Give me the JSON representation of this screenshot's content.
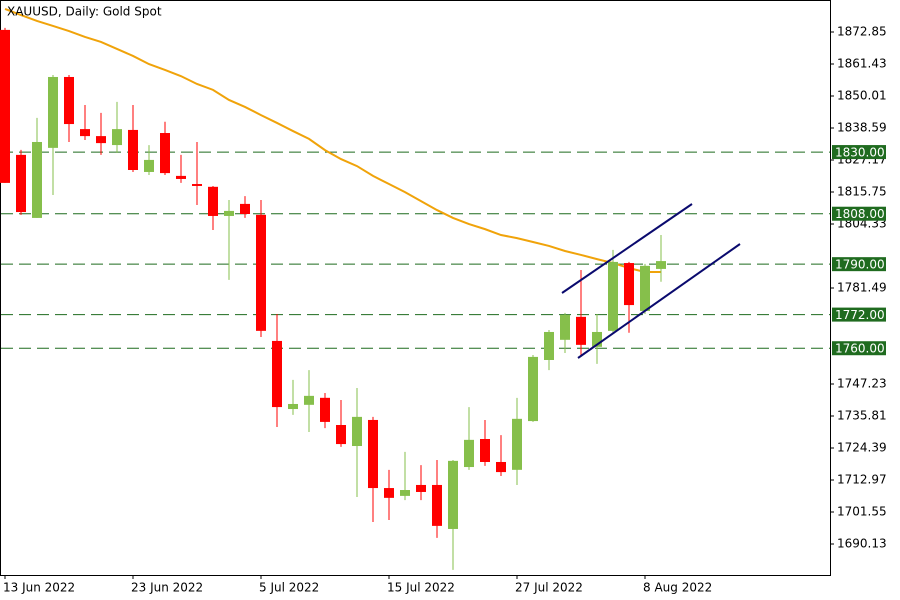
{
  "chart_data": {
    "type": "candlestick",
    "title": "XAUUSD, Daily:  Gold Spot",
    "categories": [
      "13 Jun 2022",
      null,
      null,
      null,
      null,
      null,
      null,
      null,
      "23 Jun 2022",
      null,
      null,
      null,
      null,
      null,
      null,
      null,
      "5 Jul 2022",
      null,
      null,
      null,
      null,
      null,
      null,
      null,
      "15 Jul 2022",
      null,
      null,
      null,
      null,
      null,
      null,
      null,
      "27 Jul 2022",
      null,
      null,
      null,
      null,
      null,
      null,
      null,
      "8 Aug 2022",
      null
    ],
    "open": [
      1873.6,
      1829.0,
      1806.5,
      1831.5,
      1856.8,
      1838.2,
      1835.7,
      1832.5,
      1837.9,
      1822.9,
      1836.8,
      1821.5,
      1818.6,
      1817.6,
      1807.2,
      1811.5,
      1807.6,
      1762.6,
      1738.3,
      1739.8,
      1742.3,
      1732.6,
      1725.1,
      1734.4,
      1710.1,
      1707.3,
      1711.2,
      1711.2,
      1695.5,
      1717.6,
      1727.6,
      1719.4,
      1716.6,
      1734.0,
      1755.8,
      1763.0,
      1771.2,
      1760.5,
      1766.2,
      1790.4,
      1773.3,
      1788.3
    ],
    "high": [
      1874.3,
      1830.8,
      1842.2,
      1857.5,
      1857.5,
      1846.8,
      1844.0,
      1847.9,
      1846.8,
      1832.5,
      1840.8,
      1829.0,
      1833.6,
      1817.9,
      1812.9,
      1814.3,
      1812.9,
      1772.2,
      1748.7,
      1752.2,
      1744.0,
      1741.5,
      1745.8,
      1735.5,
      1716.6,
      1723.0,
      1718.3,
      1720.1,
      1720.1,
      1739.0,
      1734.4,
      1729.0,
      1742.3,
      1757.6,
      1766.5,
      1772.6,
      1787.9,
      1772.2,
      1795.1,
      1790.8,
      1790.1,
      1800.4
    ],
    "low": [
      1819.0,
      1807.6,
      1806.5,
      1814.7,
      1833.6,
      1834.3,
      1829.0,
      1829.7,
      1822.9,
      1821.8,
      1821.8,
      1819.0,
      1811.1,
      1802.2,
      1784.4,
      1806.5,
      1764.0,
      1731.9,
      1736.2,
      1730.1,
      1731.5,
      1724.8,
      1706.9,
      1698.0,
      1698.7,
      1705.8,
      1705.8,
      1692.3,
      1680.9,
      1716.6,
      1718.0,
      1714.4,
      1711.2,
      1733.7,
      1752.2,
      1758.3,
      1756.9,
      1754.4,
      1765.5,
      1765.5,
      1772.2,
      1783.7
    ],
    "close": [
      1819.0,
      1808.6,
      1833.6,
      1856.8,
      1840.0,
      1835.7,
      1833.2,
      1838.2,
      1823.6,
      1827.2,
      1822.5,
      1820.4,
      1817.9,
      1807.2,
      1809.0,
      1807.9,
      1766.2,
      1739.0,
      1740.1,
      1743.0,
      1733.7,
      1725.8,
      1735.5,
      1710.1,
      1706.6,
      1709.4,
      1708.7,
      1696.6,
      1719.8,
      1727.3,
      1719.4,
      1715.8,
      1734.8,
      1756.9,
      1765.8,
      1771.9,
      1761.2,
      1765.8,
      1790.8,
      1775.4,
      1789.4,
      1791.1
    ],
    "up_color": "#86bf4b",
    "down_color": "#ff0000",
    "ma": {
      "color": "#f0a30a",
      "values": [
        1881.1,
        1878.9,
        1876.8,
        1875.0,
        1873.2,
        1871.1,
        1869.3,
        1866.8,
        1864.3,
        1861.4,
        1859.3,
        1857.1,
        1854.3,
        1852.2,
        1848.6,
        1846.1,
        1843.2,
        1840.4,
        1837.5,
        1834.7,
        1830.7,
        1827.5,
        1825.0,
        1821.5,
        1818.6,
        1815.7,
        1812.5,
        1809.3,
        1806.5,
        1804.3,
        1802.5,
        1800.4,
        1799.3,
        1797.9,
        1796.5,
        1794.7,
        1793.3,
        1791.8,
        1790.4,
        1788.6,
        1787.2,
        1787.2
      ]
    },
    "levels": [
      {
        "value": 1830,
        "label": "1830.00"
      },
      {
        "value": 1808,
        "label": "1808.00"
      },
      {
        "value": 1790,
        "label": "1790.00"
      },
      {
        "value": 1772,
        "label": "1772.00"
      },
      {
        "value": 1760,
        "label": "1760.00"
      }
    ],
    "level_color": "#1f6b1f",
    "ylim": [
      1679.07,
      1884.27
    ],
    "yticks": [
      1872.85,
      1861.43,
      1850.01,
      1838.59,
      1827.17,
      1815.75,
      1804.33,
      1781.49,
      1747.23,
      1735.81,
      1724.39,
      1712.97,
      1701.55,
      1690.13
    ]
  }
}
